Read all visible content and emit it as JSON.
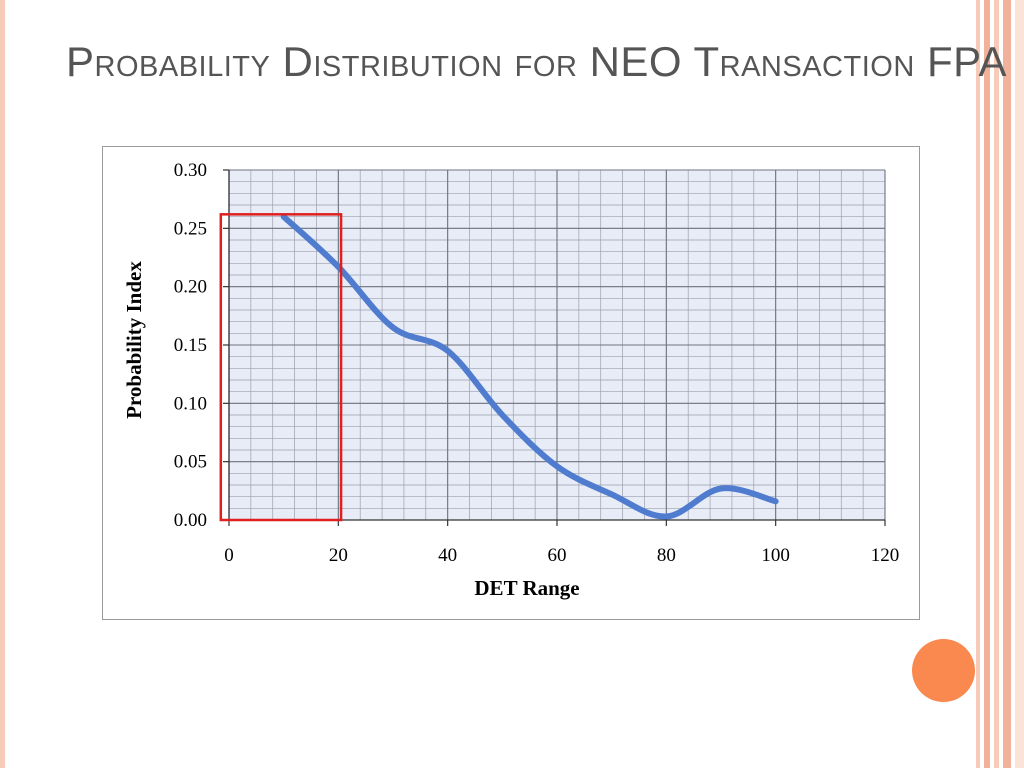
{
  "slide": {
    "title": "Probability Distribution for NEO Transaction FPA"
  },
  "theme": {
    "border_colors": [
      "#f7cbb8",
      "#f2b19b",
      "#fbe3d8"
    ],
    "accent_dot": "#f9894e",
    "title_color": "#555555"
  },
  "chart_data": {
    "type": "line",
    "title": "",
    "xlabel": "DET Range",
    "ylabel": "Probability Index",
    "xlim": [
      0,
      120
    ],
    "ylim": [
      0,
      0.3
    ],
    "xticks": [
      "0",
      "20",
      "40",
      "60",
      "80",
      "100",
      "120"
    ],
    "yticks": [
      "0.00",
      "0.05",
      "0.10",
      "0.15",
      "0.20",
      "0.25",
      "0.30"
    ],
    "grid": true,
    "plot_background": "#e8ecf7",
    "series": [
      {
        "color": "#4f7ccf",
        "x": [
          10,
          20,
          30,
          40,
          50,
          60,
          70,
          80,
          90,
          100
        ],
        "y": [
          0.26,
          0.217,
          0.165,
          0.145,
          0.09,
          0.046,
          0.022,
          0.003,
          0.027,
          0.016
        ]
      }
    ],
    "highlight_box": {
      "x_range": [
        -1.5,
        20.5
      ],
      "y_range": [
        0,
        0.262
      ],
      "color": "#e02020"
    }
  }
}
